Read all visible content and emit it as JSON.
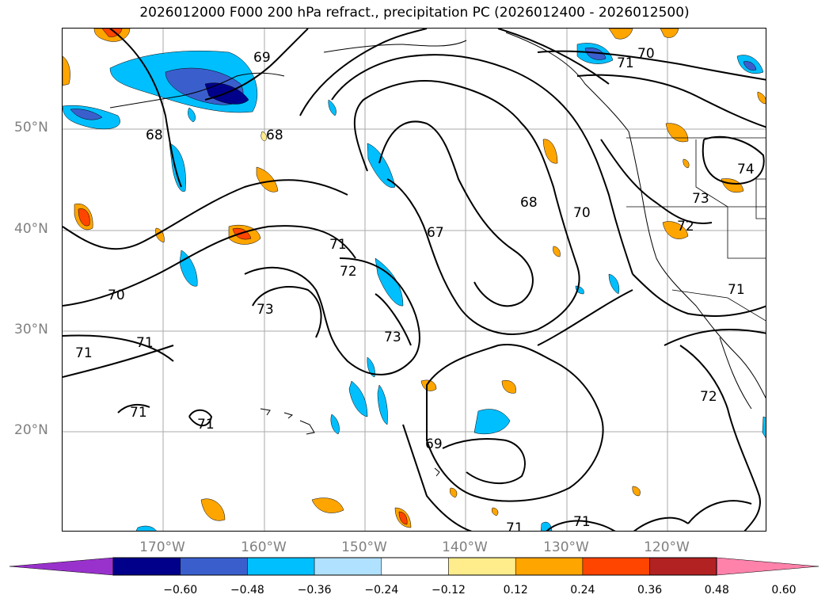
{
  "title": "2026012000 F000 200 hPa refract., precipitation PC (2026012400 - 2026012500)",
  "map": {
    "lat_ticks": [
      "50°N",
      "40°N",
      "30°N",
      "20°N"
    ],
    "lon_ticks": [
      "170°W",
      "160°W",
      "150°W",
      "140°W",
      "130°W",
      "120°W"
    ],
    "contour_labels": [
      "69",
      "70",
      "71",
      "68",
      "68",
      "74",
      "68",
      "70",
      "73",
      "67",
      "72",
      "71",
      "72",
      "70",
      "73",
      "71",
      "71",
      "73",
      "71",
      "71",
      "72",
      "69",
      "71",
      "71",
      "71"
    ]
  },
  "colorbar": {
    "ticks": [
      "−0.60",
      "−0.48",
      "−0.36",
      "−0.24",
      "−0.12",
      "0.12",
      "0.24",
      "0.36",
      "0.48",
      "0.60"
    ],
    "colors": [
      "#9932cc",
      "#00008b",
      "#3a5fcd",
      "#00bfff",
      "#b0e2ff",
      "#ffffff",
      "#ffec8b",
      "#ffa500",
      "#ff4500",
      "#b22222",
      "#ff82ab"
    ]
  }
}
